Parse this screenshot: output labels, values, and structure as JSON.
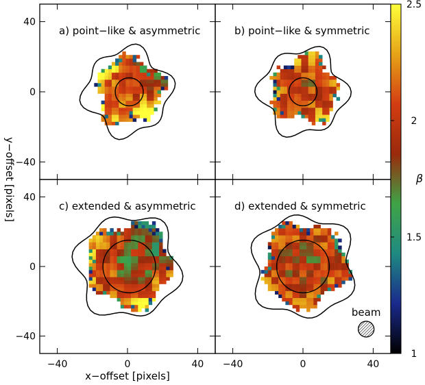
{
  "chart_data": {
    "type": "heatmap",
    "xlabel": "x−offset [pixels]",
    "ylabel": "y−offset [pixels]",
    "xlim": [
      -50,
      50
    ],
    "ylim": [
      -50,
      50
    ],
    "x_ticks": [
      -40,
      0,
      40
    ],
    "y_ticks": [
      40,
      0,
      -40
    ],
    "x_tick_labels": [
      "−40",
      "0",
      "40"
    ],
    "y_tick_labels": [
      "40",
      "0",
      "−40"
    ],
    "panels": [
      {
        "id": "a",
        "label": "a) point−like & asymmetric",
        "circle": {
          "cx": 1,
          "cy": 0,
          "r": 8
        },
        "blob_radius": 19,
        "base_beta": 1.95,
        "asymmetry": 0.45
      },
      {
        "id": "b",
        "label": "b) point−like & symmetric",
        "circle": {
          "cx": 0,
          "cy": 0,
          "r": 8
        },
        "blob_radius": 19,
        "base_beta": 1.9,
        "asymmetry": 0.0
      },
      {
        "id": "c",
        "label": "c) extended & asymmetric",
        "circle": {
          "cx": 1,
          "cy": 0,
          "r": 15
        },
        "blob_radius": 24,
        "base_beta": 1.8,
        "asymmetry": 0.45
      },
      {
        "id": "d",
        "label": "d) extended & symmetric",
        "circle": {
          "cx": 0,
          "cy": 0,
          "r": 15
        },
        "blob_radius": 24,
        "base_beta": 1.85,
        "asymmetry": 0.0
      }
    ],
    "beam": {
      "label": "beam",
      "cx": 36,
      "cy": -36,
      "r": 4.5
    },
    "colorbar": {
      "label": "β",
      "range": [
        1,
        2.5
      ],
      "ticks": [
        1,
        1.5,
        2,
        2.5
      ],
      "tick_labels": [
        "1",
        "1.5",
        "2",
        "2.5"
      ],
      "colors": [
        "#000000",
        "#1a2a8c",
        "#1f8a82",
        "#3fa446",
        "#9a2a0c",
        "#d33d12",
        "#e6a418",
        "#ffff3a"
      ]
    }
  }
}
